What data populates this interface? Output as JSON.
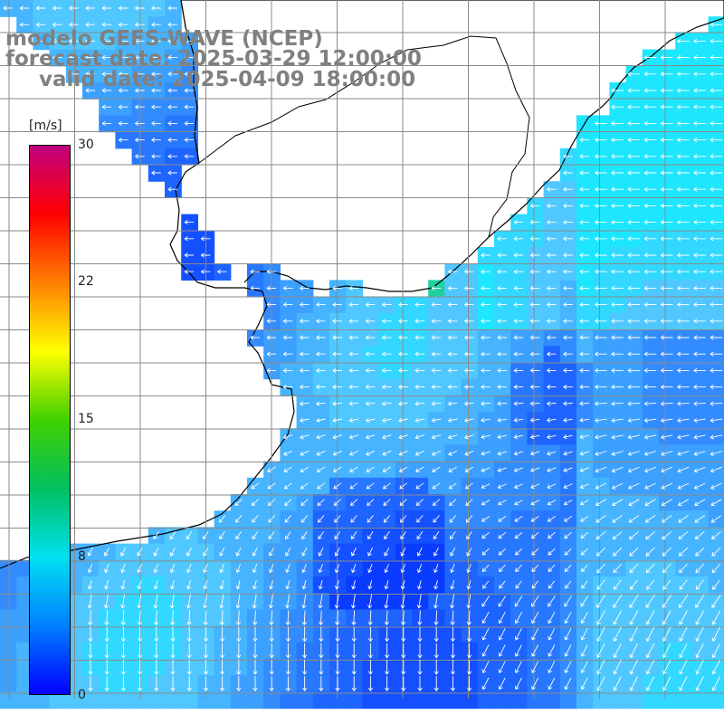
{
  "header": {
    "line1": "modelo GEFS-WAVE (NCEP)",
    "line2": "forecast date: 2025-03-29 12:00:00",
    "line3": "valid date: 2025-04-09 18:00:00"
  },
  "colorbar": {
    "unit": "[m/s]",
    "ticks": [
      {
        "label": "30",
        "value": 30
      },
      {
        "label": "22",
        "value": 22
      },
      {
        "label": "15",
        "value": 15
      },
      {
        "label": "8",
        "value": 8
      },
      {
        "label": "0",
        "value": 0
      }
    ],
    "range": [
      0,
      30
    ],
    "colors": [
      "#0000ff",
      "#0080ff",
      "#00e0f0",
      "#00c060",
      "#40d000",
      "#ffff00",
      "#ff8000",
      "#ff0000",
      "#c00080"
    ]
  },
  "map": {
    "variable": "wind speed and direction",
    "land_color": "#ffffff",
    "prevailing_wind_east": "easterly",
    "prevailing_wind_south": "northerly"
  }
}
